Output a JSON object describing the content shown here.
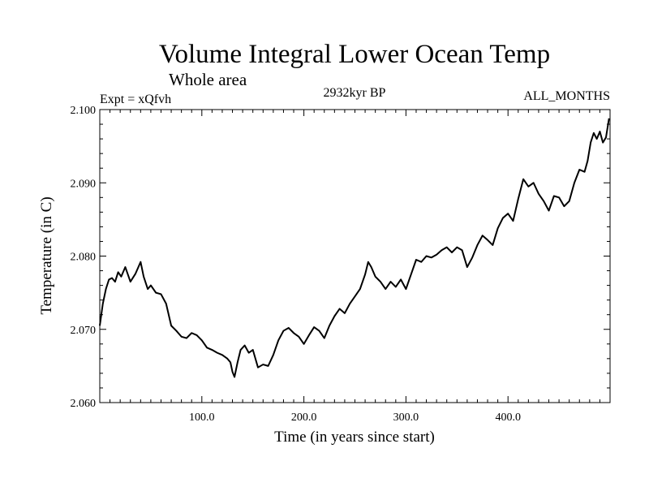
{
  "chart_data": {
    "type": "line",
    "title": "Volume Integral Lower Ocean Temp",
    "subtitle": "Whole area",
    "info_left": "Expt = xQfvh",
    "info_center": "2932kyr BP",
    "info_right": "ALL_MONTHS",
    "xlabel": "Time (in years since start)",
    "ylabel": "Temperature (in C)",
    "xlim": [
      0,
      500
    ],
    "ylim": [
      2.06,
      2.1
    ],
    "x_ticks": [
      100,
      200,
      300,
      400
    ],
    "x_tick_labels": [
      "100.0",
      "200.0",
      "300.0",
      "400.0"
    ],
    "y_ticks": [
      2.06,
      2.07,
      2.08,
      2.09,
      2.1
    ],
    "y_tick_labels": [
      "2.060",
      "2.070",
      "2.080",
      "2.090",
      "2.100"
    ],
    "grid": false,
    "series": [
      {
        "name": "Volume Integral Lower Ocean Temp",
        "color": "#000000",
        "x": [
          0,
          3,
          6,
          9,
          12,
          15,
          18,
          21,
          25,
          30,
          35,
          40,
          43,
          47,
          50,
          55,
          60,
          65,
          70,
          75,
          80,
          85,
          90,
          95,
          100,
          105,
          110,
          115,
          120,
          125,
          128,
          130,
          132,
          135,
          138,
          142,
          146,
          150,
          155,
          160,
          165,
          170,
          175,
          180,
          185,
          190,
          195,
          200,
          205,
          210,
          215,
          220,
          225,
          230,
          235,
          240,
          245,
          250,
          255,
          260,
          263,
          266,
          270,
          275,
          280,
          285,
          290,
          295,
          300,
          305,
          310,
          315,
          320,
          325,
          330,
          335,
          340,
          345,
          350,
          355,
          360,
          365,
          370,
          375,
          380,
          385,
          390,
          395,
          400,
          405,
          410,
          415,
          420,
          425,
          430,
          435,
          440,
          445,
          450,
          455,
          460,
          465,
          470,
          475,
          478,
          481,
          484,
          487,
          490,
          493,
          496,
          499
        ],
        "values": [
          2.0705,
          2.0735,
          2.0755,
          2.0768,
          2.077,
          2.0765,
          2.0778,
          2.0772,
          2.0785,
          2.0765,
          2.0776,
          2.0792,
          2.0772,
          2.0755,
          2.076,
          2.075,
          2.0748,
          2.0735,
          2.0705,
          2.0698,
          2.069,
          2.0688,
          2.0695,
          2.0692,
          2.0685,
          2.0675,
          2.0672,
          2.0668,
          2.0665,
          2.066,
          2.0655,
          2.0642,
          2.0635,
          2.0655,
          2.0672,
          2.0678,
          2.0668,
          2.0672,
          2.0648,
          2.0652,
          2.065,
          2.0665,
          2.0685,
          2.0698,
          2.0702,
          2.0695,
          2.069,
          2.068,
          2.0692,
          2.0703,
          2.0698,
          2.0688,
          2.0705,
          2.0718,
          2.0728,
          2.0722,
          2.0735,
          2.0745,
          2.0755,
          2.0775,
          2.0792,
          2.0785,
          2.0772,
          2.0765,
          2.0755,
          2.0765,
          2.0758,
          2.0768,
          2.0755,
          2.0775,
          2.0795,
          2.0792,
          2.08,
          2.0798,
          2.0802,
          2.0808,
          2.0812,
          2.0805,
          2.0812,
          2.0808,
          2.0785,
          2.0798,
          2.0815,
          2.0828,
          2.0822,
          2.0815,
          2.0838,
          2.0852,
          2.0858,
          2.0848,
          2.0878,
          2.0905,
          2.0895,
          2.09,
          2.0885,
          2.0875,
          2.0862,
          2.0882,
          2.088,
          2.0868,
          2.0875,
          2.09,
          2.0918,
          2.0915,
          2.093,
          2.0955,
          2.0968,
          2.096,
          2.097,
          2.0955,
          2.0962,
          2.0988
        ]
      }
    ]
  }
}
